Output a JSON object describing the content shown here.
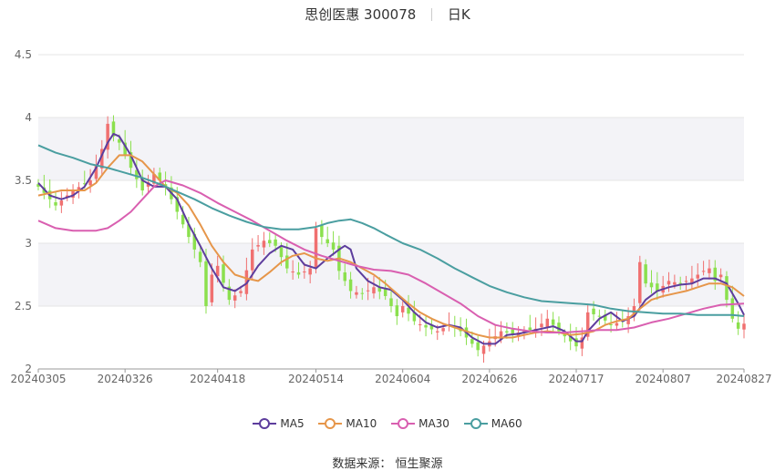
{
  "title": {
    "stock": "思创医惠 300078",
    "period": "日K"
  },
  "source": "数据来源： 恒生聚源",
  "chart_data": {
    "type": "candlestick",
    "y_ticks": [
      "2",
      "2.5",
      "3",
      "3.5",
      "4",
      "4.5"
    ],
    "ylim": [
      2,
      4.5
    ],
    "x_ticks": [
      {
        "idx": 0,
        "label": "20240305"
      },
      {
        "idx": 15,
        "label": "20240326"
      },
      {
        "idx": 31,
        "label": "20240418"
      },
      {
        "idx": 48,
        "label": "20240514"
      },
      {
        "idx": 63,
        "label": "20240604"
      },
      {
        "idx": 78,
        "label": "20240626"
      },
      {
        "idx": 93,
        "label": "20240717"
      },
      {
        "idx": 108,
        "label": "20240807"
      },
      {
        "idx": 122,
        "label": "20240827"
      }
    ],
    "n_days": 123,
    "colors": {
      "up": "#f07070",
      "down": "#8be04e",
      "ma5": "#5d3d9d",
      "ma10": "#e6964a",
      "ma30": "#d95fb0",
      "ma60": "#4a9ea0"
    },
    "candle_keys": [
      {
        "idx": 0,
        "close": 3.45
      },
      {
        "idx": 3,
        "close": 3.3
      },
      {
        "idx": 6,
        "close": 3.42
      },
      {
        "idx": 9,
        "close": 3.5
      },
      {
        "idx": 11,
        "close": 3.75
      },
      {
        "idx": 12,
        "close": 3.95
      },
      {
        "idx": 13,
        "close": 3.85
      },
      {
        "idx": 14,
        "close": 3.8
      },
      {
        "idx": 16,
        "close": 3.6
      },
      {
        "idx": 18,
        "close": 3.42
      },
      {
        "idx": 20,
        "close": 3.55
      },
      {
        "idx": 22,
        "close": 3.45
      },
      {
        "idx": 24,
        "close": 3.25
      },
      {
        "idx": 26,
        "close": 3.05
      },
      {
        "idx": 28,
        "close": 2.85
      },
      {
        "idx": 29,
        "close": 2.5
      },
      {
        "idx": 30,
        "close": 2.75
      },
      {
        "idx": 31,
        "close": 2.82
      },
      {
        "idx": 33,
        "close": 2.55
      },
      {
        "idx": 35,
        "close": 2.62
      },
      {
        "idx": 37,
        "close": 2.95
      },
      {
        "idx": 39,
        "close": 3.02
      },
      {
        "idx": 41,
        "close": 2.98
      },
      {
        "idx": 43,
        "close": 2.8
      },
      {
        "idx": 45,
        "close": 2.75
      },
      {
        "idx": 47,
        "close": 2.8
      },
      {
        "idx": 48,
        "close": 3.12
      },
      {
        "idx": 49,
        "close": 3.05
      },
      {
        "idx": 51,
        "close": 2.95
      },
      {
        "idx": 52,
        "close": 2.78
      },
      {
        "idx": 54,
        "close": 2.62
      },
      {
        "idx": 56,
        "close": 2.6
      },
      {
        "idx": 58,
        "close": 2.65
      },
      {
        "idx": 60,
        "close": 2.58
      },
      {
        "idx": 62,
        "close": 2.42
      },
      {
        "idx": 63,
        "close": 2.5
      },
      {
        "idx": 65,
        "close": 2.38
      },
      {
        "idx": 67,
        "close": 2.33
      },
      {
        "idx": 69,
        "close": 2.3
      },
      {
        "idx": 71,
        "close": 2.35
      },
      {
        "idx": 73,
        "close": 2.3
      },
      {
        "idx": 75,
        "close": 2.2
      },
      {
        "idx": 76,
        "close": 2.15
      },
      {
        "idx": 78,
        "close": 2.22
      },
      {
        "idx": 80,
        "close": 2.3
      },
      {
        "idx": 82,
        "close": 2.28
      },
      {
        "idx": 84,
        "close": 2.3
      },
      {
        "idx": 86,
        "close": 2.32
      },
      {
        "idx": 88,
        "close": 2.4
      },
      {
        "idx": 90,
        "close": 2.3
      },
      {
        "idx": 92,
        "close": 2.22
      },
      {
        "idx": 93,
        "close": 2.18
      },
      {
        "idx": 94,
        "close": 2.25
      },
      {
        "idx": 95,
        "close": 2.45
      },
      {
        "idx": 97,
        "close": 2.42
      },
      {
        "idx": 99,
        "close": 2.35
      },
      {
        "idx": 101,
        "close": 2.38
      },
      {
        "idx": 102,
        "close": 2.42
      },
      {
        "idx": 103,
        "close": 2.5
      },
      {
        "idx": 104,
        "close": 2.85
      },
      {
        "idx": 105,
        "close": 2.68
      },
      {
        "idx": 107,
        "close": 2.62
      },
      {
        "idx": 109,
        "close": 2.7
      },
      {
        "idx": 111,
        "close": 2.68
      },
      {
        "idx": 113,
        "close": 2.72
      },
      {
        "idx": 115,
        "close": 2.78
      },
      {
        "idx": 116,
        "close": 2.8
      },
      {
        "idx": 117,
        "close": 2.7
      },
      {
        "idx": 118,
        "close": 2.75
      },
      {
        "idx": 119,
        "close": 2.55
      },
      {
        "idx": 120,
        "close": 2.4
      },
      {
        "idx": 121,
        "close": 2.32
      },
      {
        "idx": 122,
        "close": 2.36
      }
    ],
    "series": [
      {
        "name": "MA5",
        "points": [
          [
            0,
            3.48
          ],
          [
            2,
            3.38
          ],
          [
            4,
            3.35
          ],
          [
            6,
            3.38
          ],
          [
            8,
            3.45
          ],
          [
            10,
            3.6
          ],
          [
            12,
            3.8
          ],
          [
            13,
            3.87
          ],
          [
            14,
            3.85
          ],
          [
            16,
            3.7
          ],
          [
            18,
            3.5
          ],
          [
            20,
            3.45
          ],
          [
            22,
            3.45
          ],
          [
            24,
            3.35
          ],
          [
            26,
            3.15
          ],
          [
            28,
            2.98
          ],
          [
            30,
            2.8
          ],
          [
            32,
            2.65
          ],
          [
            34,
            2.62
          ],
          [
            36,
            2.68
          ],
          [
            38,
            2.82
          ],
          [
            40,
            2.92
          ],
          [
            42,
            2.98
          ],
          [
            44,
            2.95
          ],
          [
            46,
            2.83
          ],
          [
            48,
            2.8
          ],
          [
            50,
            2.88
          ],
          [
            52,
            2.95
          ],
          [
            53,
            2.98
          ],
          [
            54,
            2.95
          ],
          [
            55,
            2.8
          ],
          [
            57,
            2.7
          ],
          [
            59,
            2.65
          ],
          [
            61,
            2.63
          ],
          [
            63,
            2.55
          ],
          [
            65,
            2.45
          ],
          [
            67,
            2.37
          ],
          [
            69,
            2.33
          ],
          [
            71,
            2.35
          ],
          [
            73,
            2.33
          ],
          [
            75,
            2.25
          ],
          [
            77,
            2.2
          ],
          [
            79,
            2.2
          ],
          [
            81,
            2.27
          ],
          [
            83,
            2.28
          ],
          [
            85,
            2.3
          ],
          [
            87,
            2.32
          ],
          [
            89,
            2.34
          ],
          [
            91,
            2.3
          ],
          [
            93,
            2.22
          ],
          [
            94,
            2.22
          ],
          [
            95,
            2.3
          ],
          [
            97,
            2.4
          ],
          [
            99,
            2.45
          ],
          [
            101,
            2.38
          ],
          [
            103,
            2.42
          ],
          [
            105,
            2.55
          ],
          [
            107,
            2.62
          ],
          [
            109,
            2.65
          ],
          [
            111,
            2.67
          ],
          [
            113,
            2.68
          ],
          [
            115,
            2.72
          ],
          [
            117,
            2.72
          ],
          [
            119,
            2.68
          ],
          [
            121,
            2.52
          ],
          [
            122,
            2.43
          ]
        ]
      },
      {
        "name": "MA10",
        "points": [
          [
            0,
            3.38
          ],
          [
            2,
            3.4
          ],
          [
            4,
            3.42
          ],
          [
            6,
            3.42
          ],
          [
            8,
            3.42
          ],
          [
            10,
            3.48
          ],
          [
            12,
            3.6
          ],
          [
            14,
            3.7
          ],
          [
            16,
            3.7
          ],
          [
            18,
            3.65
          ],
          [
            20,
            3.55
          ],
          [
            22,
            3.45
          ],
          [
            24,
            3.4
          ],
          [
            26,
            3.3
          ],
          [
            28,
            3.15
          ],
          [
            30,
            2.98
          ],
          [
            32,
            2.85
          ],
          [
            34,
            2.75
          ],
          [
            36,
            2.72
          ],
          [
            38,
            2.7
          ],
          [
            40,
            2.77
          ],
          [
            42,
            2.85
          ],
          [
            44,
            2.9
          ],
          [
            46,
            2.92
          ],
          [
            48,
            2.88
          ],
          [
            50,
            2.86
          ],
          [
            52,
            2.88
          ],
          [
            54,
            2.85
          ],
          [
            56,
            2.8
          ],
          [
            58,
            2.75
          ],
          [
            60,
            2.68
          ],
          [
            62,
            2.6
          ],
          [
            64,
            2.52
          ],
          [
            66,
            2.45
          ],
          [
            68,
            2.4
          ],
          [
            70,
            2.36
          ],
          [
            72,
            2.33
          ],
          [
            74,
            2.3
          ],
          [
            76,
            2.27
          ],
          [
            78,
            2.25
          ],
          [
            80,
            2.25
          ],
          [
            82,
            2.25
          ],
          [
            84,
            2.27
          ],
          [
            86,
            2.29
          ],
          [
            88,
            2.3
          ],
          [
            90,
            2.29
          ],
          [
            92,
            2.27
          ],
          [
            94,
            2.28
          ],
          [
            96,
            2.3
          ],
          [
            98,
            2.35
          ],
          [
            100,
            2.38
          ],
          [
            102,
            2.4
          ],
          [
            104,
            2.48
          ],
          [
            106,
            2.55
          ],
          [
            108,
            2.58
          ],
          [
            110,
            2.6
          ],
          [
            112,
            2.62
          ],
          [
            114,
            2.65
          ],
          [
            116,
            2.68
          ],
          [
            118,
            2.68
          ],
          [
            120,
            2.65
          ],
          [
            122,
            2.58
          ]
        ]
      },
      {
        "name": "MA30",
        "points": [
          [
            0,
            3.18
          ],
          [
            3,
            3.12
          ],
          [
            6,
            3.1
          ],
          [
            10,
            3.1
          ],
          [
            12,
            3.12
          ],
          [
            14,
            3.18
          ],
          [
            16,
            3.25
          ],
          [
            18,
            3.35
          ],
          [
            20,
            3.45
          ],
          [
            22,
            3.5
          ],
          [
            25,
            3.46
          ],
          [
            28,
            3.4
          ],
          [
            31,
            3.32
          ],
          [
            34,
            3.25
          ],
          [
            37,
            3.18
          ],
          [
            40,
            3.1
          ],
          [
            43,
            3.02
          ],
          [
            46,
            2.95
          ],
          [
            49,
            2.9
          ],
          [
            52,
            2.86
          ],
          [
            55,
            2.82
          ],
          [
            58,
            2.79
          ],
          [
            61,
            2.78
          ],
          [
            64,
            2.75
          ],
          [
            67,
            2.68
          ],
          [
            70,
            2.6
          ],
          [
            73,
            2.52
          ],
          [
            76,
            2.42
          ],
          [
            79,
            2.35
          ],
          [
            82,
            2.32
          ],
          [
            85,
            2.3
          ],
          [
            88,
            2.29
          ],
          [
            91,
            2.29
          ],
          [
            94,
            2.3
          ],
          [
            97,
            2.31
          ],
          [
            100,
            2.31
          ],
          [
            103,
            2.33
          ],
          [
            106,
            2.37
          ],
          [
            109,
            2.4
          ],
          [
            112,
            2.44
          ],
          [
            115,
            2.48
          ],
          [
            118,
            2.51
          ],
          [
            122,
            2.52
          ]
        ]
      },
      {
        "name": "MA60",
        "points": [
          [
            0,
            3.78
          ],
          [
            3,
            3.72
          ],
          [
            6,
            3.68
          ],
          [
            9,
            3.63
          ],
          [
            12,
            3.6
          ],
          [
            15,
            3.56
          ],
          [
            18,
            3.52
          ],
          [
            21,
            3.47
          ],
          [
            24,
            3.41
          ],
          [
            27,
            3.35
          ],
          [
            30,
            3.28
          ],
          [
            33,
            3.22
          ],
          [
            36,
            3.17
          ],
          [
            39,
            3.13
          ],
          [
            42,
            3.11
          ],
          [
            45,
            3.11
          ],
          [
            48,
            3.13
          ],
          [
            50,
            3.16
          ],
          [
            52,
            3.18
          ],
          [
            54,
            3.19
          ],
          [
            56,
            3.16
          ],
          [
            58,
            3.12
          ],
          [
            60,
            3.07
          ],
          [
            63,
            3.0
          ],
          [
            66,
            2.95
          ],
          [
            69,
            2.88
          ],
          [
            72,
            2.8
          ],
          [
            75,
            2.73
          ],
          [
            78,
            2.66
          ],
          [
            81,
            2.61
          ],
          [
            84,
            2.57
          ],
          [
            87,
            2.54
          ],
          [
            90,
            2.53
          ],
          [
            93,
            2.52
          ],
          [
            96,
            2.51
          ],
          [
            99,
            2.48
          ],
          [
            102,
            2.46
          ],
          [
            105,
            2.45
          ],
          [
            108,
            2.44
          ],
          [
            111,
            2.44
          ],
          [
            114,
            2.43
          ],
          [
            117,
            2.43
          ],
          [
            120,
            2.43
          ],
          [
            122,
            2.42
          ]
        ]
      }
    ]
  }
}
